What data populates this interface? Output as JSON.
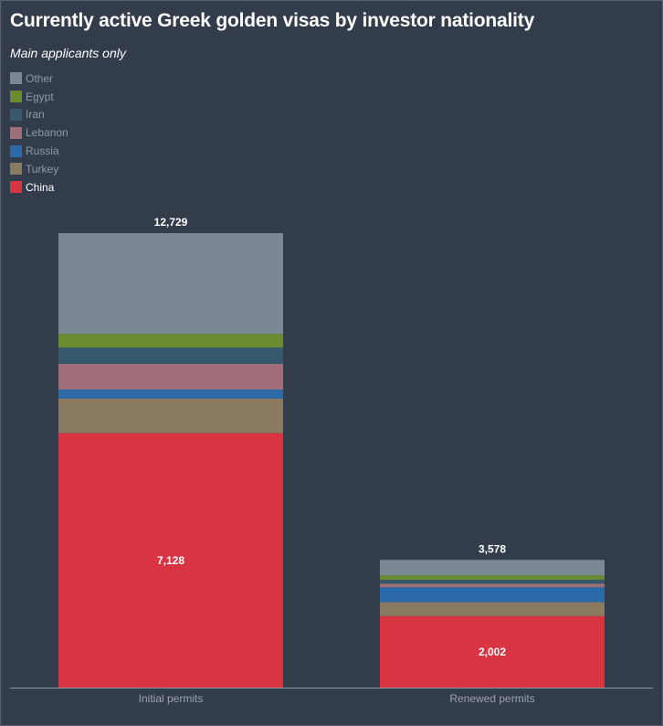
{
  "title": "Currently active Greek golden visas by investor nationality",
  "subtitle": "Main applicants only",
  "legend": [
    {
      "name": "Other",
      "color": "#7b8792",
      "active": false
    },
    {
      "name": "Egypt",
      "color": "#6b8b2f",
      "active": false
    },
    {
      "name": "Iran",
      "color": "#365a6b",
      "active": false
    },
    {
      "name": "Lebanon",
      "color": "#a06e78",
      "active": false
    },
    {
      "name": "Russia",
      "color": "#2b6aa8",
      "active": false
    },
    {
      "name": "Turkey",
      "color": "#8b7a62",
      "active": false
    },
    {
      "name": "China",
      "color": "#d93442",
      "active": true
    }
  ],
  "chart_data": {
    "type": "bar",
    "stacked": true,
    "categories": [
      "Initial permits",
      "Renewed permits"
    ],
    "series": [
      {
        "name": "China",
        "color": "#d93442",
        "values": [
          7128,
          2002
        ]
      },
      {
        "name": "Turkey",
        "color": "#8b7a62",
        "values": [
          970,
          390
        ]
      },
      {
        "name": "Russia",
        "color": "#2b6aa8",
        "values": [
          250,
          420
        ]
      },
      {
        "name": "Lebanon",
        "color": "#a06e78",
        "values": [
          720,
          100
        ]
      },
      {
        "name": "Iran",
        "color": "#365a6b",
        "values": [
          460,
          110
        ]
      },
      {
        "name": "Egypt",
        "color": "#6b8b2f",
        "values": [
          380,
          120
        ]
      },
      {
        "name": "Other",
        "color": "#7b8792",
        "values": [
          2821,
          436
        ]
      }
    ],
    "totals": [
      "12,729",
      "3,578"
    ],
    "data_labels": {
      "China": [
        "7,128",
        "2,002"
      ]
    },
    "ylim": [
      0,
      12729
    ],
    "grid": false,
    "legend_position": "top-left"
  }
}
